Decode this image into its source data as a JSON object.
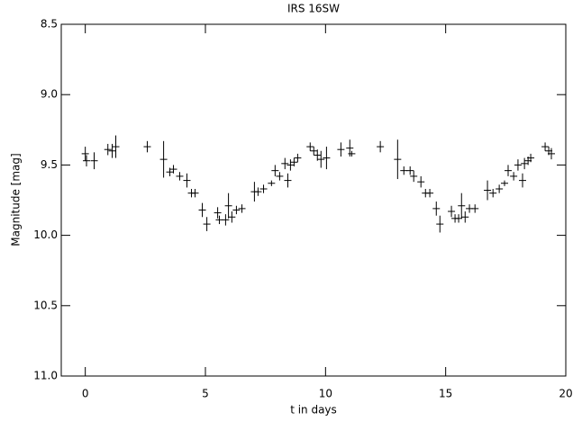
{
  "chart_data": {
    "type": "errorbar",
    "title": "IRS 16SW",
    "x_label": "t in days",
    "y_label": "Magnitude [mag]",
    "color": "#000000",
    "y_inverted": true,
    "xlim": [
      -1,
      20
    ],
    "ylim": [
      8.5,
      11.0
    ],
    "xticks": [
      0,
      5,
      10,
      15,
      20
    ],
    "yticks": [
      {
        "value": 8.5,
        "label": "8.5"
      },
      {
        "value": 9.0,
        "label": "9.0"
      },
      9.5,
      {
        "value": 10.0,
        "label": "10.0"
      },
      10.5,
      {
        "value": 11.0,
        "label": "11.0"
      }
    ],
    "x": [
      0.0,
      0.05,
      0.37,
      0.94,
      1.12,
      1.27,
      2.58,
      3.26,
      3.52,
      3.67,
      3.93,
      4.23,
      4.42,
      4.57,
      4.87,
      5.06,
      5.51,
      5.58,
      5.84,
      5.96,
      6.1,
      6.29,
      6.52,
      7.04,
      7.19,
      7.42,
      7.75,
      7.9,
      8.09,
      8.31,
      8.43,
      8.54,
      8.69,
      8.84,
      9.36,
      9.51,
      9.66,
      9.81,
      10.04,
      10.64,
      11.01,
      11.09,
      12.28,
      13.0,
      13.26,
      13.52,
      13.67,
      13.97,
      14.16,
      14.34,
      14.61,
      14.76,
      15.24,
      15.39,
      15.54,
      15.66,
      15.81,
      15.99,
      16.22,
      16.74,
      16.97,
      17.23,
      17.45,
      17.6,
      17.83,
      18.01,
      18.2,
      18.28,
      18.43,
      18.54,
      19.14,
      19.29,
      19.4
    ],
    "values": [
      9.42,
      9.47,
      9.47,
      9.39,
      9.4,
      9.37,
      9.37,
      9.46,
      9.55,
      9.53,
      9.58,
      9.61,
      9.7,
      9.7,
      9.82,
      9.92,
      9.84,
      9.89,
      9.89,
      9.79,
      9.87,
      9.82,
      9.81,
      9.69,
      9.69,
      9.67,
      9.63,
      9.54,
      9.58,
      9.49,
      9.61,
      9.5,
      9.48,
      9.45,
      9.37,
      9.4,
      9.43,
      9.46,
      9.45,
      9.39,
      9.38,
      9.42,
      9.37,
      9.46,
      9.54,
      9.54,
      9.58,
      9.62,
      9.7,
      9.7,
      9.81,
      9.92,
      9.83,
      9.88,
      9.88,
      9.79,
      9.87,
      9.81,
      9.81,
      9.68,
      9.7,
      9.67,
      9.63,
      9.54,
      9.58,
      9.5,
      9.61,
      9.49,
      9.47,
      9.45,
      9.37,
      9.4,
      9.42
    ],
    "errors": [
      0.05,
      0.04,
      0.06,
      0.04,
      0.05,
      0.08,
      0.04,
      0.13,
      0.03,
      0.03,
      0.03,
      0.05,
      0.03,
      0.03,
      0.05,
      0.05,
      0.04,
      0.03,
      0.04,
      0.09,
      0.04,
      0.03,
      0.03,
      0.07,
      0.03,
      0.03,
      0.02,
      0.04,
      0.03,
      0.04,
      0.05,
      0.04,
      0.03,
      0.03,
      0.03,
      0.03,
      0.04,
      0.06,
      0.08,
      0.05,
      0.06,
      0.02,
      0.04,
      0.14,
      0.03,
      0.03,
      0.04,
      0.04,
      0.03,
      0.03,
      0.05,
      0.06,
      0.04,
      0.03,
      0.03,
      0.09,
      0.04,
      0.03,
      0.03,
      0.07,
      0.03,
      0.03,
      0.02,
      0.04,
      0.03,
      0.04,
      0.05,
      0.04,
      0.03,
      0.03,
      0.03,
      0.03,
      0.04
    ]
  }
}
